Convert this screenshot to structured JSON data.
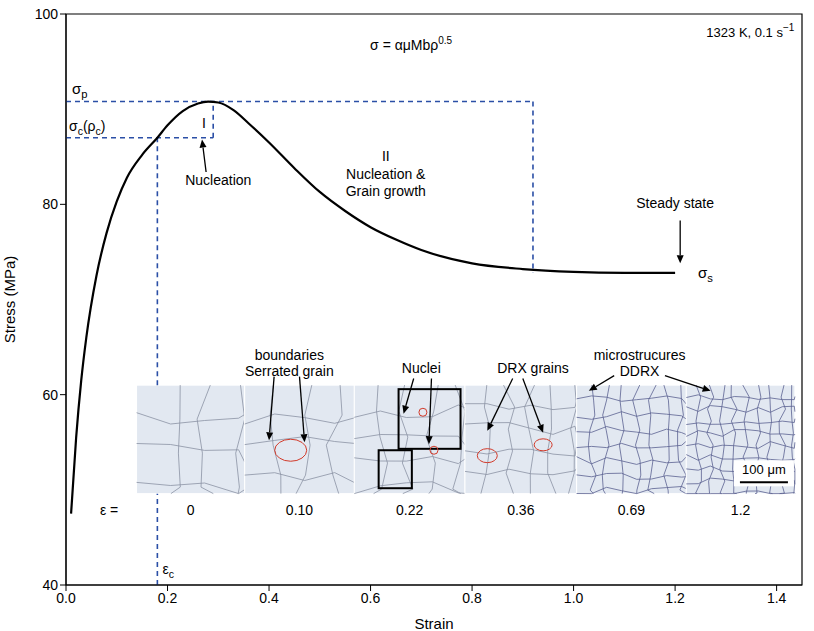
{
  "chart_data": {
    "type": "line",
    "xlabel": "Strain",
    "ylabel": "Stress (MPa)",
    "xlim": [
      0,
      1.45
    ],
    "ylim": [
      40,
      100
    ],
    "xticks": [
      {
        "value": 0,
        "label": "0.0"
      },
      0.2,
      0.4,
      0.6,
      0.8,
      {
        "value": 1,
        "label": "1.0"
      },
      1.2,
      1.4
    ],
    "yticks": [
      40,
      60,
      80,
      100
    ],
    "grid": false,
    "color": "#000000",
    "x": [
      0.01,
      0.02,
      0.03,
      0.04,
      0.06,
      0.08,
      0.1,
      0.12,
      0.15,
      0.18,
      0.2,
      0.23,
      0.26,
      0.28,
      0.3,
      0.33,
      0.36,
      0.4,
      0.45,
      0.5,
      0.55,
      0.6,
      0.65,
      0.7,
      0.8,
      0.9,
      1.0,
      1.1,
      1.2
    ],
    "values": [
      47.5,
      55.5,
      61.5,
      66,
      72.5,
      77,
      80.3,
      82.8,
      85.2,
      87,
      88.3,
      89.8,
      90.6,
      90.8,
      90.7,
      89.9,
      88.5,
      86.5,
      83.8,
      81.3,
      79.3,
      77.6,
      76.3,
      75.2,
      73.8,
      73.2,
      72.9,
      72.8,
      72.8
    ],
    "annotations": {
      "condition": {
        "text": "1323 K, 0.1 s",
        "superscript": "−1"
      },
      "equation": {
        "text": "σ = αμMbρ",
        "superscript": "0.5"
      },
      "peak": {
        "label": "σp",
        "stress": 90.8,
        "strain": 0.29
      },
      "critical": {
        "label": "σc(ρc)",
        "stress": 87,
        "strain_label": "εc",
        "strain": 0.18
      },
      "steady": {
        "label": "σs",
        "stress": 72.8,
        "text": "Steady state"
      },
      "stage_I": {
        "label": "I",
        "text": "Nucleation"
      },
      "stage_II": {
        "label": "II",
        "text": "Nucleation & Grain growth",
        "end_strain": 0.92
      },
      "micrographs": {
        "strain_prefix": "ε =",
        "strains": [
          0,
          {
            "value": 0.1,
            "label": "0.10"
          },
          0.22,
          0.36,
          0.69,
          1.2
        ],
        "callouts": [
          "Serrated grain boundaries",
          "Nuclei",
          "DRX grains",
          "DDRX microstrucures"
        ],
        "scale_bar": "100 μm"
      }
    }
  }
}
